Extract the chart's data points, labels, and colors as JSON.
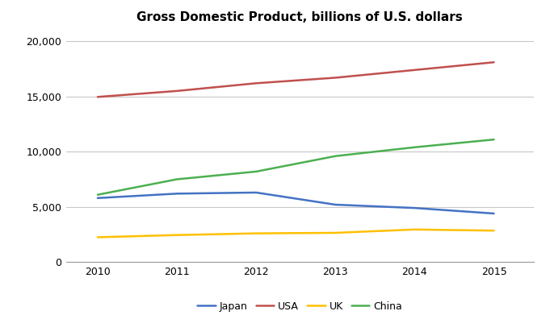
{
  "title": "Gross Domestic Product, billions of U.S. dollars",
  "years": [
    2010,
    2011,
    2012,
    2013,
    2014,
    2015
  ],
  "series": {
    "Japan": {
      "values": [
        5800,
        6200,
        6300,
        5200,
        4900,
        4400
      ],
      "color": "#4472C4"
    },
    "USA": {
      "values": [
        14960,
        15500,
        16200,
        16700,
        17400,
        18100
      ],
      "color": "#C0504D"
    },
    "UK": {
      "values": [
        2250,
        2450,
        2600,
        2650,
        2950,
        2850
      ],
      "color": "#FFC000"
    },
    "China": {
      "values": [
        6100,
        7500,
        8200,
        9600,
        10400,
        11100
      ],
      "color": "#4CAF50"
    }
  },
  "ylim": [
    0,
    21000
  ],
  "yticks": [
    0,
    5000,
    10000,
    15000,
    20000
  ],
  "xlim": [
    2009.6,
    2015.5
  ],
  "legend_order": [
    "Japan",
    "USA",
    "UK",
    "China"
  ],
  "background_color": "#FFFFFF",
  "grid_color": "#C8C8C8",
  "title_fontsize": 11,
  "tick_fontsize": 9,
  "legend_fontsize": 9,
  "line_width": 1.8
}
